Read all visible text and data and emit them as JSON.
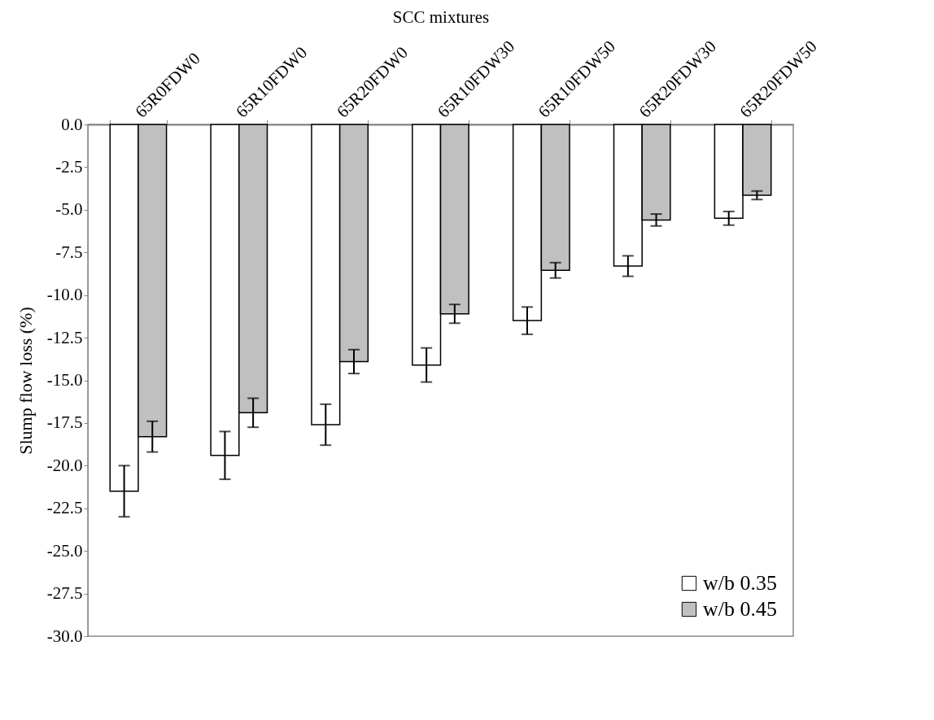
{
  "chart_data": {
    "type": "bar",
    "xlabel": "SCC mixtures",
    "ylabel": "Slump flow loss (%)",
    "categories": [
      "65R0FDW0",
      "65R10FDW0",
      "65R20FDW0",
      "65R10FDW30",
      "65R10FDW50",
      "65R20FDW30",
      "65R20FDW50"
    ],
    "series": [
      {
        "name": "w/b 0.35",
        "color": "#ffffff",
        "values": [
          -21.5,
          -19.4,
          -17.6,
          -14.1,
          -11.5,
          -8.3,
          -5.5
        ],
        "errors": [
          1.5,
          1.4,
          1.2,
          1.0,
          0.8,
          0.6,
          0.4
        ]
      },
      {
        "name": "w/b 0.45",
        "color": "#c0c0c0",
        "values": [
          -18.3,
          -16.9,
          -13.9,
          -11.1,
          -8.55,
          -5.6,
          -4.15
        ],
        "errors": [
          0.9,
          0.85,
          0.7,
          0.55,
          0.45,
          0.35,
          0.25
        ]
      }
    ],
    "ylim": [
      -30.0,
      0.0
    ],
    "yticks": [
      {
        "value": 0,
        "label": "0.0"
      },
      {
        "value": -2.5,
        "label": "-2.5"
      },
      {
        "value": -5,
        "label": "-5.0"
      },
      {
        "value": -7.5,
        "label": "-7.5"
      },
      {
        "value": -10,
        "label": "-10.0"
      },
      {
        "value": -12.5,
        "label": "-12.5"
      },
      {
        "value": -15,
        "label": "-15.0"
      },
      {
        "value": -17.5,
        "label": "-17.5"
      },
      {
        "value": -20,
        "label": "-20.0"
      },
      {
        "value": -22.5,
        "label": "-22.5"
      },
      {
        "value": -25,
        "label": "-25.0"
      },
      {
        "value": -27.5,
        "label": "-27.5"
      },
      {
        "value": -30,
        "label": "-30.0"
      }
    ],
    "grid": false,
    "legend": "bottom right"
  }
}
